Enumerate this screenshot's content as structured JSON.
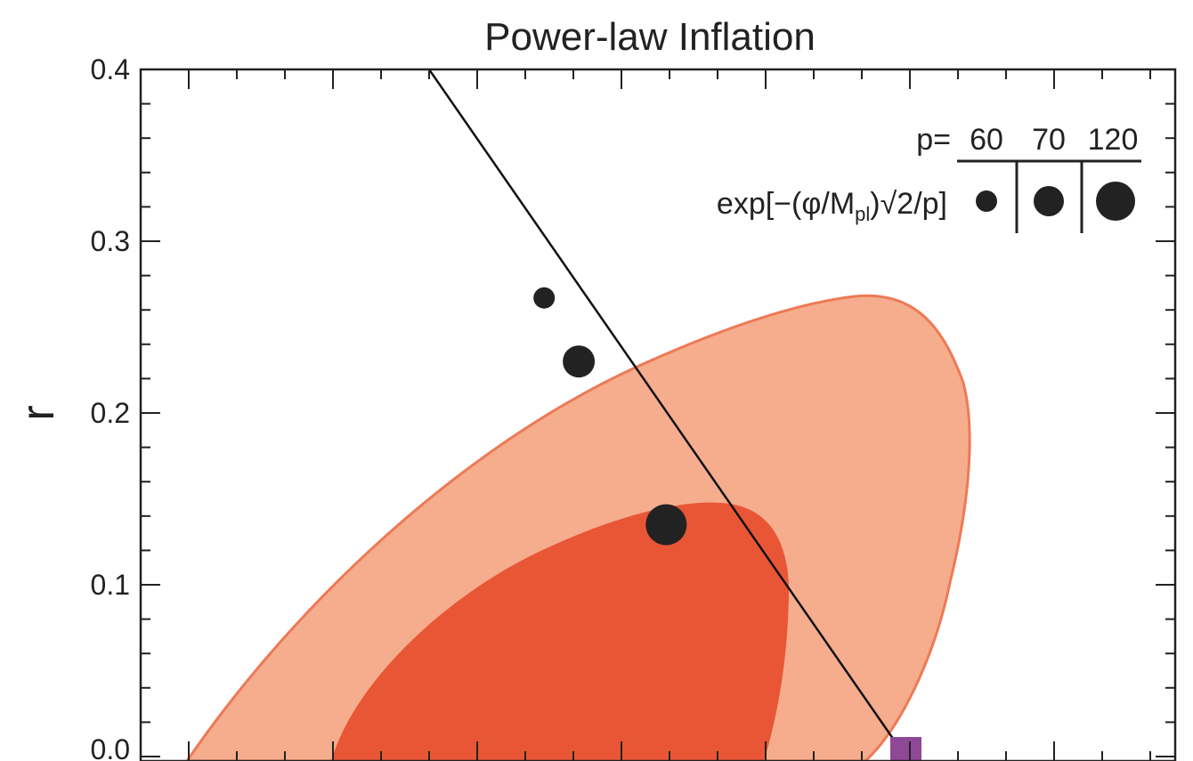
{
  "chart_data": {
    "type": "scatter",
    "title": "Power-law Inflation",
    "xlabel": "",
    "ylabel": "r",
    "ylim": [
      0.0,
      0.4
    ],
    "yticks": [
      "0.0",
      "0.1",
      "0.2",
      "0.3",
      "0.4"
    ],
    "grid": false,
    "legend": {
      "placement": "top-right",
      "header_prefix": "p=",
      "columns": [
        "60",
        "70",
        "120"
      ],
      "row_label_main": "exp[−(φ/M",
      "row_label_sub": "pl",
      "row_label_tail": ")√2/p]"
    },
    "series": [
      {
        "type": "line",
        "x": [
          0.0,
          1.0
        ],
        "y": [
          0.4,
          0.0
        ]
      },
      {
        "type": "points",
        "x": [
          0.39,
          0.4235,
          0.508
        ],
        "y": [
          0.267,
          0.23,
          0.135
        ],
        "sizes": [
          "small",
          "medium",
          "large"
        ],
        "labels": [
          "60",
          "70",
          "120"
        ]
      },
      {
        "type": "marker",
        "shape": "square",
        "x": 0.715,
        "y": 0.0
      }
    ],
    "contours": [
      {
        "level": "outer",
        "color": "#f5ad8e",
        "edge": "#ed7a55"
      },
      {
        "level": "inner",
        "color": "#e95635"
      }
    ],
    "colors": {
      "line": "#111111",
      "points": "#222222",
      "marker": "#8e4896"
    }
  }
}
